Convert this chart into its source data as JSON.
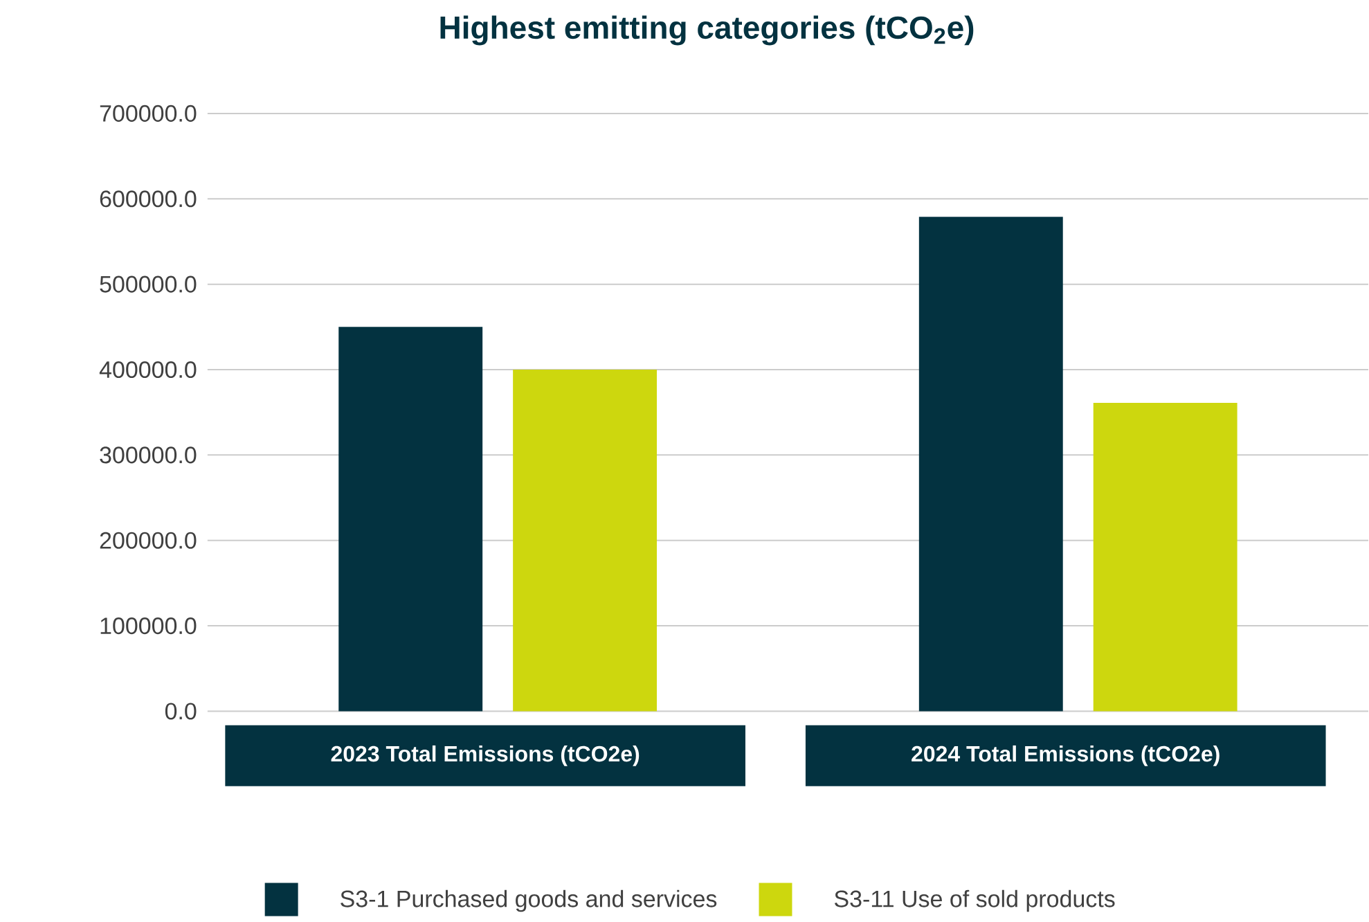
{
  "chart_data": {
    "type": "bar",
    "title": "Highest emitting categories (tCO$_{2}$e)",
    "categories": [
      "2023 Total Emissions (tCO2e)",
      "2024 Total Emissions (tCO2e)"
    ],
    "series": [
      {
        "name": "S3-1 Purchased goods and services",
        "color": "#033240",
        "values": [
          450000,
          579000
        ]
      },
      {
        "name": "S3-11 Use of sold products",
        "color": "#cdd70e",
        "values": [
          400000,
          361000
        ]
      }
    ],
    "ylim": [
      0,
      700000
    ],
    "yticks": [
      {
        "value": 0,
        "label": "0.0"
      },
      {
        "value": 100000,
        "label": "100000.0"
      },
      {
        "value": 200000,
        "label": "200000.0"
      },
      {
        "value": 300000,
        "label": "300000.0"
      },
      {
        "value": 400000,
        "label": "400000.0"
      },
      {
        "value": 500000,
        "label": "500000.0"
      },
      {
        "value": 600000,
        "label": "600000.0"
      },
      {
        "value": 700000,
        "label": "700000.0"
      }
    ],
    "grid": "y",
    "legend": "bottom"
  }
}
